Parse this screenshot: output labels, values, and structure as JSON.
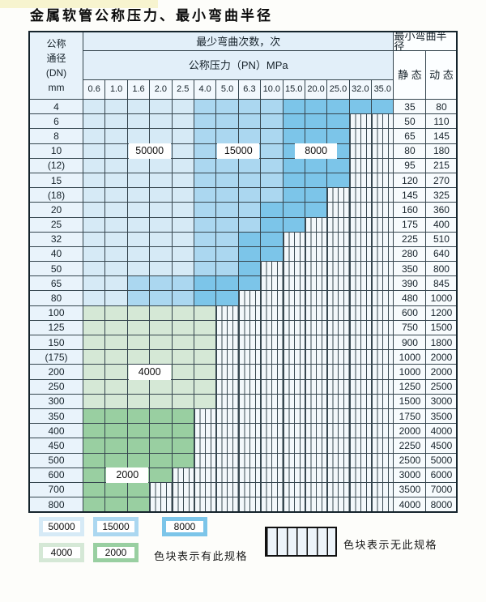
{
  "title": "金属软管公称压力、最小弯曲半径",
  "table": {
    "corner_lines": [
      "公称",
      "通径",
      "(DN)",
      "mm"
    ],
    "cycles_header": "最少弯曲次数，次",
    "pressure_header": "公称压力（PN）MPa",
    "radius_header": "最小弯曲半径",
    "static_label": "静 态",
    "dynamic_label": "动 态"
  },
  "legend": {
    "has_spec_note": "色块表示有此规格",
    "no_spec_note": "色块表示无此规格"
  },
  "colors": {
    "cycles": {
      "50000": "#d6eaf6",
      "15000": "#abd7f0",
      "8000": "#7cc5e9",
      "4000": "#d5e8d6",
      "2000": "#99cfa1"
    },
    "grid_line": "#35454e",
    "no_spec_bg": "#f3f8fb"
  },
  "chart_data": {
    "type": "table",
    "title": "金属软管公称压力、最小弯曲半径",
    "pressure_columns": [
      "0.6",
      "1.0",
      "1.6",
      "2.0",
      "2.5",
      "4.0",
      "5.0",
      "6.3",
      "10.0",
      "15.0",
      "20.0",
      "25.0",
      "32.0",
      "35.0"
    ],
    "radius_columns": [
      "静 态",
      "动 态"
    ],
    "cycle_levels": [
      "50000",
      "15000",
      "8000",
      "4000",
      "2000"
    ],
    "notes": {
      "colored": "色块表示有此规格",
      "striped": "色块表示无此规格"
    },
    "rows": [
      {
        "dn": "4",
        "static": 35,
        "dynamic": 80,
        "bands": [
          [
            "50000",
            "0.6",
            "2.5"
          ],
          [
            "15000",
            "4.0",
            "10.0"
          ],
          [
            "8000",
            "15.0",
            "35.0"
          ]
        ]
      },
      {
        "dn": "6",
        "static": 50,
        "dynamic": 110,
        "bands": [
          [
            "50000",
            "0.6",
            "2.5"
          ],
          [
            "15000",
            "4.0",
            "10.0"
          ],
          [
            "8000",
            "15.0",
            "25.0"
          ]
        ]
      },
      {
        "dn": "8",
        "static": 65,
        "dynamic": 145,
        "bands": [
          [
            "50000",
            "0.6",
            "2.5"
          ],
          [
            "15000",
            "4.0",
            "10.0"
          ],
          [
            "8000",
            "15.0",
            "25.0"
          ]
        ]
      },
      {
        "dn": "10",
        "static": 80,
        "dynamic": 180,
        "bands": [
          [
            "50000",
            "0.6",
            "2.5"
          ],
          [
            "15000",
            "4.0",
            "10.0"
          ],
          [
            "8000",
            "15.0",
            "25.0"
          ]
        ]
      },
      {
        "dn": "(12)",
        "static": 95,
        "dynamic": 215,
        "bands": [
          [
            "50000",
            "0.6",
            "2.5"
          ],
          [
            "15000",
            "4.0",
            "10.0"
          ],
          [
            "8000",
            "15.0",
            "25.0"
          ]
        ]
      },
      {
        "dn": "15",
        "static": 120,
        "dynamic": 270,
        "bands": [
          [
            "50000",
            "0.6",
            "2.5"
          ],
          [
            "15000",
            "4.0",
            "10.0"
          ],
          [
            "8000",
            "15.0",
            "25.0"
          ]
        ]
      },
      {
        "dn": "(18)",
        "static": 145,
        "dynamic": 325,
        "bands": [
          [
            "50000",
            "0.6",
            "2.5"
          ],
          [
            "15000",
            "4.0",
            "10.0"
          ],
          [
            "8000",
            "15.0",
            "20.0"
          ]
        ]
      },
      {
        "dn": "20",
        "static": 160,
        "dynamic": 360,
        "bands": [
          [
            "50000",
            "0.6",
            "2.5"
          ],
          [
            "15000",
            "4.0",
            "6.3"
          ],
          [
            "8000",
            "10.0",
            "20.0"
          ]
        ]
      },
      {
        "dn": "25",
        "static": 175,
        "dynamic": 400,
        "bands": [
          [
            "50000",
            "0.6",
            "2.5"
          ],
          [
            "15000",
            "4.0",
            "6.3"
          ],
          [
            "8000",
            "10.0",
            "15.0"
          ]
        ]
      },
      {
        "dn": "32",
        "static": 225,
        "dynamic": 510,
        "bands": [
          [
            "50000",
            "0.6",
            "2.5"
          ],
          [
            "15000",
            "4.0",
            "5.0"
          ],
          [
            "8000",
            "6.3",
            "10.0"
          ]
        ]
      },
      {
        "dn": "40",
        "static": 280,
        "dynamic": 640,
        "bands": [
          [
            "50000",
            "0.6",
            "2.5"
          ],
          [
            "15000",
            "4.0",
            "5.0"
          ],
          [
            "8000",
            "6.3",
            "10.0"
          ]
        ]
      },
      {
        "dn": "50",
        "static": 350,
        "dynamic": 800,
        "bands": [
          [
            "50000",
            "0.6",
            "2.5"
          ],
          [
            "15000",
            "4.0",
            "5.0"
          ],
          [
            "8000",
            "6.3",
            "6.3"
          ]
        ]
      },
      {
        "dn": "65",
        "static": 390,
        "dynamic": 845,
        "bands": [
          [
            "50000",
            "0.6",
            "1.0"
          ],
          [
            "15000",
            "1.6",
            "2.5"
          ],
          [
            "8000",
            "4.0",
            "6.3"
          ]
        ]
      },
      {
        "dn": "80",
        "static": 480,
        "dynamic": 1000,
        "bands": [
          [
            "50000",
            "0.6",
            "1.0"
          ],
          [
            "15000",
            "1.6",
            "2.5"
          ],
          [
            "8000",
            "4.0",
            "5.0"
          ]
        ]
      },
      {
        "dn": "100",
        "static": 600,
        "dynamic": 1200,
        "bands": [
          [
            "4000",
            "0.6",
            "4.0"
          ]
        ]
      },
      {
        "dn": "125",
        "static": 750,
        "dynamic": 1500,
        "bands": [
          [
            "4000",
            "0.6",
            "4.0"
          ]
        ]
      },
      {
        "dn": "150",
        "static": 900,
        "dynamic": 1800,
        "bands": [
          [
            "4000",
            "0.6",
            "4.0"
          ]
        ]
      },
      {
        "dn": "(175)",
        "static": 1000,
        "dynamic": 2000,
        "bands": [
          [
            "4000",
            "0.6",
            "4.0"
          ]
        ]
      },
      {
        "dn": "200",
        "static": 1000,
        "dynamic": 2000,
        "bands": [
          [
            "4000",
            "0.6",
            "4.0"
          ]
        ]
      },
      {
        "dn": "250",
        "static": 1250,
        "dynamic": 2500,
        "bands": [
          [
            "4000",
            "0.6",
            "4.0"
          ]
        ]
      },
      {
        "dn": "300",
        "static": 1500,
        "dynamic": 3000,
        "bands": [
          [
            "4000",
            "0.6",
            "4.0"
          ]
        ]
      },
      {
        "dn": "350",
        "static": 1750,
        "dynamic": 3500,
        "bands": [
          [
            "2000",
            "0.6",
            "2.5"
          ]
        ]
      },
      {
        "dn": "400",
        "static": 2000,
        "dynamic": 4000,
        "bands": [
          [
            "2000",
            "0.6",
            "2.5"
          ]
        ]
      },
      {
        "dn": "450",
        "static": 2250,
        "dynamic": 4500,
        "bands": [
          [
            "2000",
            "0.6",
            "2.5"
          ]
        ]
      },
      {
        "dn": "500",
        "static": 2500,
        "dynamic": 5000,
        "bands": [
          [
            "2000",
            "0.6",
            "2.5"
          ]
        ]
      },
      {
        "dn": "600",
        "static": 3000,
        "dynamic": 6000,
        "bands": [
          [
            "2000",
            "0.6",
            "2.0"
          ]
        ]
      },
      {
        "dn": "700",
        "static": 3500,
        "dynamic": 7000,
        "bands": [
          [
            "2000",
            "0.6",
            "1.6"
          ]
        ]
      },
      {
        "dn": "800",
        "static": 4000,
        "dynamic": 8000,
        "bands": [
          [
            "2000",
            "0.6",
            "1.6"
          ]
        ]
      }
    ],
    "overlay_labels": [
      {
        "text": "50000",
        "span": [
          "1.6",
          "2.0"
        ],
        "dn": "10"
      },
      {
        "text": "15000",
        "span": [
          "5.0",
          "6.3"
        ],
        "dn": "10"
      },
      {
        "text": "8000",
        "span": [
          "15.0",
          "25.0"
        ],
        "dn": "10"
      },
      {
        "text": "4000",
        "span": [
          "1.6",
          "2.0"
        ],
        "dn": "200"
      },
      {
        "text": "2000",
        "span": [
          "1.0",
          "1.6"
        ],
        "dn": "600"
      }
    ]
  }
}
